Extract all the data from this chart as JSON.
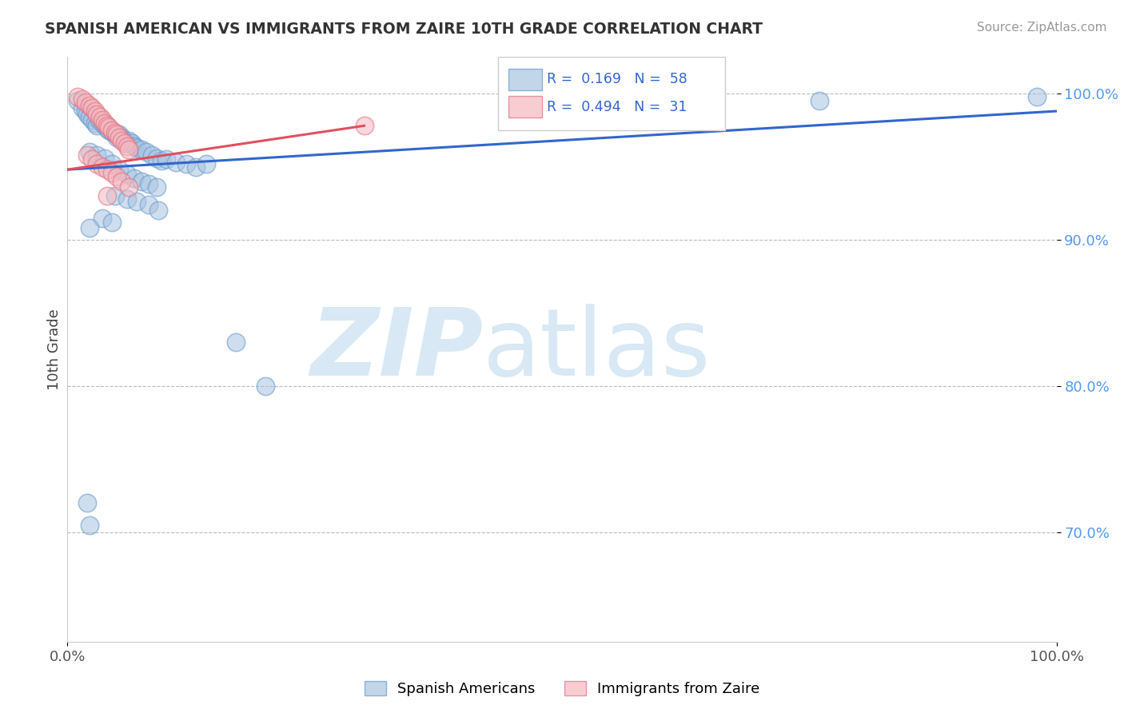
{
  "title": "SPANISH AMERICAN VS IMMIGRANTS FROM ZAIRE 10TH GRADE CORRELATION CHART",
  "source_text": "Source: ZipAtlas.com",
  "ylabel": "10th Grade",
  "xlim": [
    0.0,
    1.0
  ],
  "ylim": [
    0.625,
    1.025
  ],
  "yticks": [
    0.7,
    0.8,
    0.9,
    1.0
  ],
  "ytick_labels": [
    "70.0%",
    "80.0%",
    "90.0%",
    "100.0%"
  ],
  "xtick_positions": [
    0.0,
    1.0
  ],
  "xtick_labels": [
    "0.0%",
    "100.0%"
  ],
  "legend_r1": "R =  0.169",
  "legend_n1": "N =  58",
  "legend_r2": "R =  0.494",
  "legend_n2": "N =  31",
  "blue_color": "#a8c4e0",
  "blue_edge": "#6699cc",
  "pink_color": "#f4b8c0",
  "pink_edge": "#e07080",
  "trendline_blue": "#3366cc",
  "trendline_pink": "#e05060",
  "watermark_zip": "ZIP",
  "watermark_atlas": "atlas",
  "watermark_color": "#d8e8f4",
  "blue_scatter": [
    [
      0.01,
      0.995
    ],
    [
      0.015,
      0.99
    ],
    [
      0.018,
      0.988
    ],
    [
      0.02,
      0.986
    ],
    [
      0.022,
      0.984
    ],
    [
      0.025,
      0.982
    ],
    [
      0.028,
      0.98
    ],
    [
      0.03,
      0.978
    ],
    [
      0.032,
      0.982
    ],
    [
      0.035,
      0.98
    ],
    [
      0.038,
      0.978
    ],
    [
      0.04,
      0.976
    ],
    [
      0.042,
      0.975
    ],
    [
      0.045,
      0.974
    ],
    [
      0.048,
      0.972
    ],
    [
      0.05,
      0.97
    ],
    [
      0.052,
      0.972
    ],
    [
      0.055,
      0.97
    ],
    [
      0.058,
      0.968
    ],
    [
      0.06,
      0.966
    ],
    [
      0.062,
      0.968
    ],
    [
      0.065,
      0.966
    ],
    [
      0.068,
      0.964
    ],
    [
      0.07,
      0.963
    ],
    [
      0.075,
      0.962
    ],
    [
      0.08,
      0.96
    ],
    [
      0.085,
      0.958
    ],
    [
      0.09,
      0.956
    ],
    [
      0.095,
      0.954
    ],
    [
      0.1,
      0.955
    ],
    [
      0.11,
      0.953
    ],
    [
      0.12,
      0.952
    ],
    [
      0.13,
      0.95
    ],
    [
      0.14,
      0.952
    ],
    [
      0.022,
      0.96
    ],
    [
      0.03,
      0.958
    ],
    [
      0.038,
      0.956
    ],
    [
      0.045,
      0.952
    ],
    [
      0.052,
      0.948
    ],
    [
      0.06,
      0.945
    ],
    [
      0.068,
      0.942
    ],
    [
      0.075,
      0.94
    ],
    [
      0.082,
      0.938
    ],
    [
      0.09,
      0.936
    ],
    [
      0.048,
      0.93
    ],
    [
      0.06,
      0.928
    ],
    [
      0.07,
      0.926
    ],
    [
      0.082,
      0.924
    ],
    [
      0.092,
      0.92
    ],
    [
      0.035,
      0.915
    ],
    [
      0.045,
      0.912
    ],
    [
      0.022,
      0.908
    ],
    [
      0.17,
      0.83
    ],
    [
      0.2,
      0.8
    ],
    [
      0.02,
      0.72
    ],
    [
      0.022,
      0.705
    ],
    [
      0.76,
      0.995
    ],
    [
      0.98,
      0.998
    ]
  ],
  "pink_scatter": [
    [
      0.01,
      0.998
    ],
    [
      0.015,
      0.996
    ],
    [
      0.018,
      0.994
    ],
    [
      0.022,
      0.992
    ],
    [
      0.025,
      0.99
    ],
    [
      0.028,
      0.988
    ],
    [
      0.03,
      0.986
    ],
    [
      0.033,
      0.984
    ],
    [
      0.035,
      0.982
    ],
    [
      0.038,
      0.98
    ],
    [
      0.04,
      0.978
    ],
    [
      0.042,
      0.977
    ],
    [
      0.045,
      0.975
    ],
    [
      0.048,
      0.973
    ],
    [
      0.05,
      0.972
    ],
    [
      0.052,
      0.97
    ],
    [
      0.055,
      0.968
    ],
    [
      0.058,
      0.966
    ],
    [
      0.06,
      0.964
    ],
    [
      0.062,
      0.962
    ],
    [
      0.02,
      0.958
    ],
    [
      0.025,
      0.955
    ],
    [
      0.03,
      0.952
    ],
    [
      0.035,
      0.95
    ],
    [
      0.04,
      0.948
    ],
    [
      0.045,
      0.946
    ],
    [
      0.05,
      0.943
    ],
    [
      0.055,
      0.94
    ],
    [
      0.062,
      0.936
    ],
    [
      0.04,
      0.93
    ],
    [
      0.3,
      0.978
    ]
  ],
  "blue_trendline_x": [
    0.0,
    1.0
  ],
  "blue_trendline_y": [
    0.948,
    0.988
  ],
  "pink_trendline_x": [
    0.0,
    0.3
  ],
  "pink_trendline_y": [
    0.948,
    0.978
  ]
}
